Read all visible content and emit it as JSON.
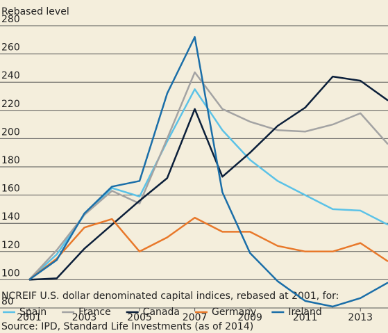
{
  "chart_data": {
    "type": "line",
    "y_label": "Rebased level",
    "caption": "NCREIF U.S. dollar denominated capital indices, rebased at 2001, for:",
    "source": "Source: IPD, Standard Life Investments (as of 2014)",
    "x": [
      2001,
      2002,
      2003,
      2004,
      2005,
      2006,
      2007,
      2008,
      2009,
      2010,
      2011,
      2012,
      2013,
      2014
    ],
    "xlim": [
      2001,
      2014
    ],
    "xticks": [
      2001,
      2003,
      2005,
      2007,
      2009,
      2011,
      2013
    ],
    "ylim": [
      80,
      280
    ],
    "yticks": [
      80,
      100,
      120,
      140,
      160,
      180,
      200,
      220,
      240,
      260,
      280
    ],
    "grid": true,
    "series": [
      {
        "name": "Spain",
        "color": "#5bc2e7",
        "values": [
          100,
          118,
          146,
          165,
          159,
          198,
          235,
          206,
          185,
          170,
          160,
          150,
          149,
          139
        ]
      },
      {
        "name": "France",
        "color": "#a3a3a3",
        "values": [
          100,
          121,
          146,
          163,
          154,
          200,
          247,
          221,
          212,
          206,
          205,
          210,
          218,
          196
        ]
      },
      {
        "name": "Canada",
        "color": "#0b1f3a",
        "values": [
          100,
          101,
          122,
          139,
          156,
          172,
          221,
          173,
          190,
          209,
          222,
          244,
          241,
          227
        ]
      },
      {
        "name": "Germany",
        "color": "#e8782a",
        "values": [
          100,
          115,
          137,
          143,
          120,
          130,
          144,
          134,
          134,
          124,
          120,
          120,
          126,
          113
        ]
      },
      {
        "name": "Ireland",
        "color": "#1a6ea8",
        "values": [
          100,
          114,
          147,
          166,
          170,
          232,
          272,
          162,
          119,
          99,
          85,
          81,
          87,
          98
        ]
      }
    ]
  }
}
